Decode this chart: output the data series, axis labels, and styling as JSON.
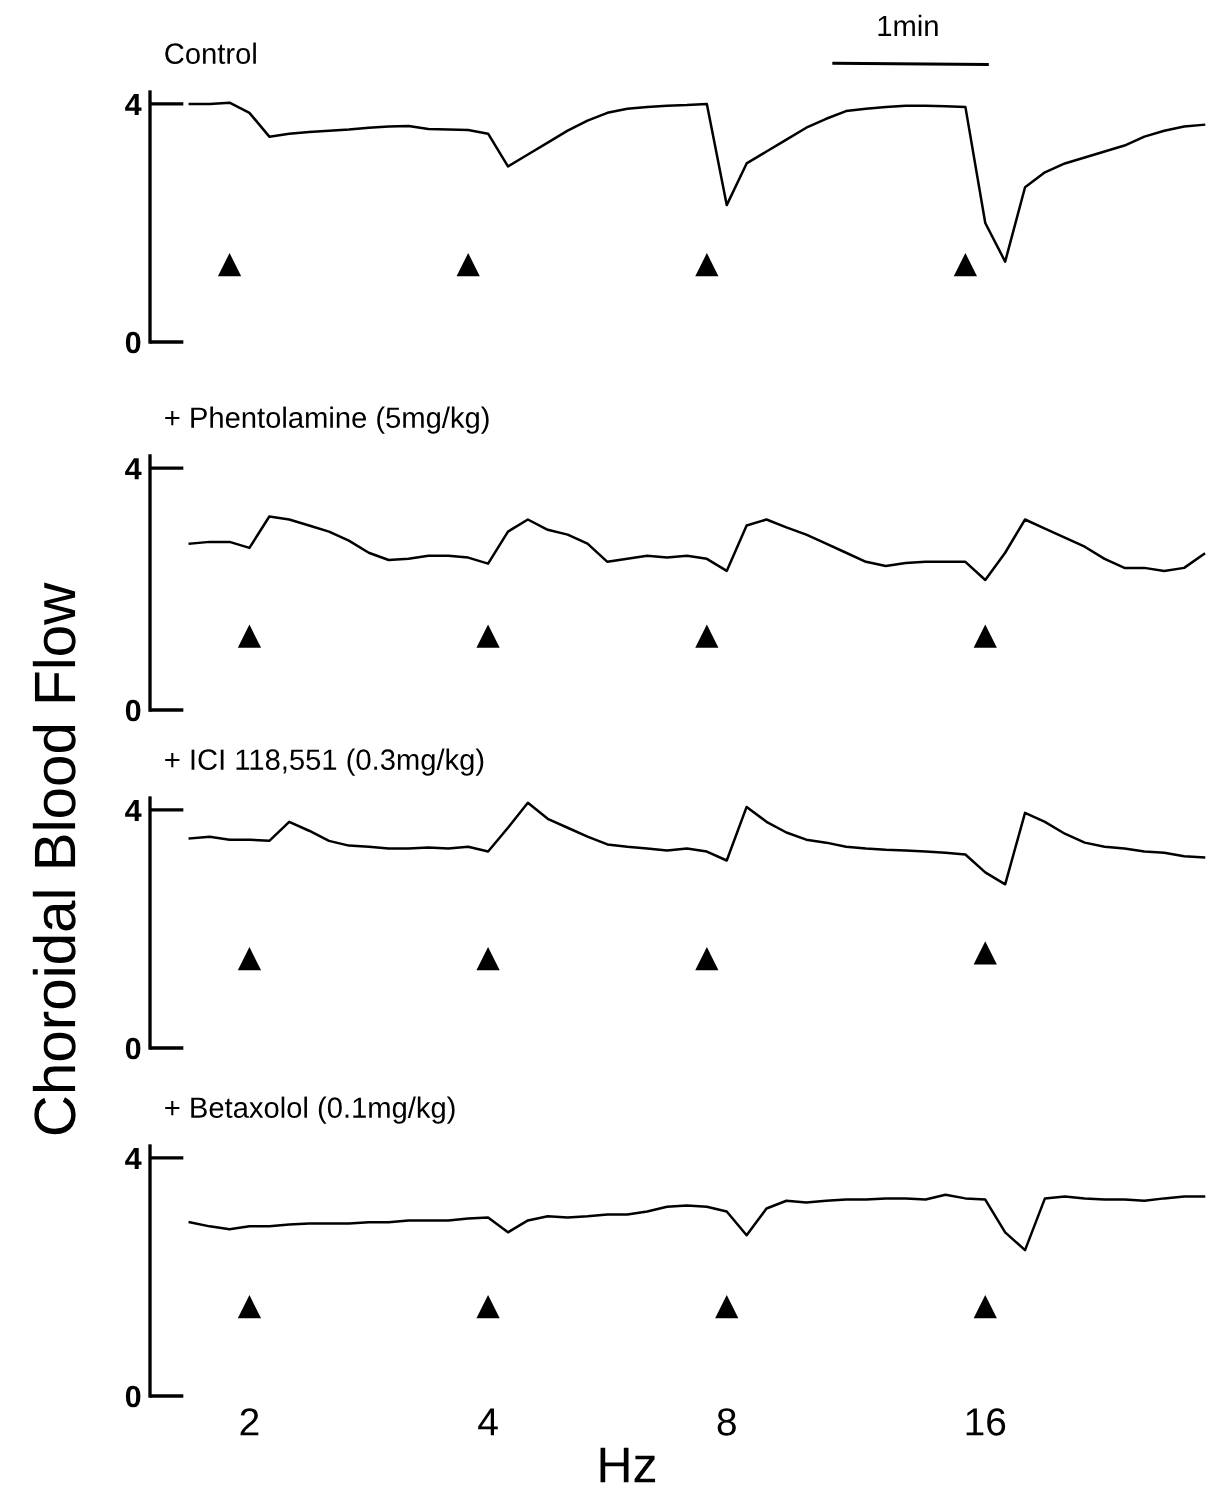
{
  "chart_data": [
    {
      "type": "line",
      "title": "Control",
      "ylabel": "Choroidal Blood Flow",
      "annotations": [
        "1min"
      ],
      "tick_labels": "y",
      "ylim": [
        0,
        4.2
      ],
      "yticks": [
        0,
        4
      ],
      "grid": false,
      "categories": [
        null,
        null,
        null,
        null,
        null,
        null,
        null,
        null,
        null,
        null,
        null,
        null,
        null,
        null,
        null,
        null,
        null,
        null,
        null,
        null,
        null,
        null,
        null,
        null,
        null,
        null,
        null,
        null,
        null,
        null,
        null,
        null,
        null,
        null,
        null,
        null,
        null,
        null,
        null,
        null,
        null,
        null,
        null,
        null,
        null,
        null,
        null,
        null,
        null,
        null,
        null,
        null
      ],
      "series": [
        {
          "color": "#000000",
          "marker": "none",
          "values": [
            4.0,
            4.0,
            4.02,
            3.85,
            3.45,
            3.5,
            3.53,
            3.55,
            3.57,
            3.6,
            3.62,
            3.63,
            3.58,
            3.57,
            3.56,
            3.5,
            2.95,
            3.15,
            3.35,
            3.55,
            3.72,
            3.85,
            3.92,
            3.95,
            3.97,
            3.98,
            4.0,
            2.3,
            3.0,
            3.2,
            3.4,
            3.6,
            3.75,
            3.88,
            3.92,
            3.95,
            3.97,
            3.97,
            3.96,
            3.95,
            2.0,
            1.35,
            2.6,
            2.85,
            3.0,
            3.1,
            3.2,
            3.3,
            3.45,
            3.55,
            3.62,
            3.65
          ]
        },
        {
          "type": "scatter",
          "color": "#000000",
          "marker": "triangle",
          "values": [
            null,
            null,
            1.3,
            null,
            null,
            null,
            null,
            null,
            null,
            null,
            null,
            null,
            null,
            null,
            1.3,
            null,
            null,
            null,
            null,
            null,
            null,
            null,
            null,
            null,
            null,
            null,
            1.3,
            null,
            null,
            null,
            null,
            null,
            null,
            null,
            null,
            null,
            null,
            null,
            null,
            1.3,
            null,
            null,
            null,
            null,
            null,
            null,
            null,
            null,
            null,
            null,
            null,
            null
          ]
        }
      ]
    },
    {
      "type": "line",
      "title": "+ Phentolamine (5mg/kg)",
      "tick_labels": "y",
      "ylim": [
        0,
        4.2
      ],
      "yticks": [
        0,
        4
      ],
      "grid": false,
      "categories": [
        null,
        null,
        null,
        null,
        null,
        null,
        null,
        null,
        null,
        null,
        null,
        null,
        null,
        null,
        null,
        null,
        null,
        null,
        null,
        null,
        null,
        null,
        null,
        null,
        null,
        null,
        null,
        null,
        null,
        null,
        null,
        null,
        null,
        null,
        null,
        null,
        null,
        null,
        null,
        null,
        null,
        null,
        null,
        null,
        null,
        null,
        null,
        null,
        null,
        null,
        null,
        null
      ],
      "series": [
        {
          "color": "#000000",
          "marker": "none",
          "values": [
            2.75,
            2.78,
            2.78,
            2.68,
            3.2,
            3.15,
            3.05,
            2.95,
            2.8,
            2.6,
            2.48,
            2.5,
            2.55,
            2.55,
            2.52,
            2.42,
            2.95,
            3.15,
            2.98,
            2.9,
            2.75,
            2.45,
            2.5,
            2.55,
            2.52,
            2.55,
            2.5,
            2.3,
            3.05,
            3.15,
            3.02,
            2.9,
            2.75,
            2.6,
            2.45,
            2.38,
            2.43,
            2.45,
            2.45,
            2.45,
            2.15,
            2.6,
            3.15,
            3.0,
            2.85,
            2.7,
            2.5,
            2.35,
            2.35,
            2.3,
            2.35,
            2.58
          ]
        },
        {
          "type": "scatter",
          "color": "#000000",
          "marker": "triangle",
          "values": [
            null,
            null,
            null,
            1.22,
            null,
            null,
            null,
            null,
            null,
            null,
            null,
            null,
            null,
            null,
            null,
            1.22,
            null,
            null,
            null,
            null,
            null,
            null,
            null,
            null,
            null,
            null,
            1.22,
            null,
            null,
            null,
            null,
            null,
            null,
            null,
            null,
            null,
            null,
            null,
            null,
            null,
            1.22,
            null,
            null,
            null,
            null,
            null,
            null,
            null,
            null,
            null,
            null,
            null
          ]
        }
      ]
    },
    {
      "type": "line",
      "title": "+ ICI 118,551 (0.3mg/kg)",
      "tick_labels": "y",
      "ylim": [
        0,
        4.2
      ],
      "yticks": [
        0,
        4
      ],
      "grid": false,
      "categories": [
        null,
        null,
        null,
        null,
        null,
        null,
        null,
        null,
        null,
        null,
        null,
        null,
        null,
        null,
        null,
        null,
        null,
        null,
        null,
        null,
        null,
        null,
        null,
        null,
        null,
        null,
        null,
        null,
        null,
        null,
        null,
        null,
        null,
        null,
        null,
        null,
        null,
        null,
        null,
        null,
        null,
        null,
        null,
        null,
        null,
        null,
        null,
        null,
        null,
        null,
        null,
        null
      ],
      "series": [
        {
          "color": "#000000",
          "marker": "none",
          "values": [
            3.52,
            3.55,
            3.5,
            3.5,
            3.48,
            3.8,
            3.65,
            3.48,
            3.4,
            3.38,
            3.35,
            3.35,
            3.37,
            3.35,
            3.38,
            3.3,
            3.7,
            4.12,
            3.85,
            3.7,
            3.55,
            3.42,
            3.38,
            3.35,
            3.32,
            3.35,
            3.3,
            3.15,
            4.05,
            3.8,
            3.62,
            3.5,
            3.45,
            3.38,
            3.35,
            3.33,
            3.32,
            3.3,
            3.28,
            3.25,
            2.95,
            2.75,
            3.95,
            3.8,
            3.6,
            3.45,
            3.38,
            3.35,
            3.3,
            3.28,
            3.22,
            3.2
          ]
        },
        {
          "type": "scatter",
          "color": "#000000",
          "marker": "triangle",
          "values": [
            null,
            null,
            null,
            1.5,
            null,
            null,
            null,
            null,
            null,
            null,
            null,
            null,
            null,
            null,
            null,
            1.5,
            null,
            null,
            null,
            null,
            null,
            null,
            null,
            null,
            null,
            null,
            1.5,
            null,
            null,
            null,
            null,
            null,
            null,
            null,
            null,
            null,
            null,
            null,
            null,
            null,
            1.6,
            null,
            null,
            null,
            null,
            null,
            null,
            null,
            null,
            null,
            null,
            null
          ]
        }
      ]
    },
    {
      "type": "line",
      "title": "+ Betaxolol (0.1mg/kg)",
      "xlabel": "Hz",
      "ylim": [
        0,
        4.2
      ],
      "yticks": [
        0,
        4
      ],
      "grid": false,
      "categories": [
        null,
        null,
        null,
        "2",
        null,
        null,
        null,
        null,
        null,
        null,
        null,
        null,
        null,
        null,
        null,
        "4",
        null,
        null,
        null,
        null,
        null,
        null,
        null,
        null,
        null,
        null,
        null,
        "8",
        null,
        null,
        null,
        null,
        null,
        null,
        null,
        null,
        null,
        null,
        null,
        null,
        "16",
        null,
        null,
        null,
        null,
        null,
        null,
        null,
        null,
        null,
        null,
        null
      ],
      "series": [
        {
          "color": "#000000",
          "marker": "none",
          "values": [
            2.92,
            2.85,
            2.8,
            2.85,
            2.85,
            2.88,
            2.9,
            2.9,
            2.9,
            2.92,
            2.92,
            2.95,
            2.95,
            2.95,
            2.98,
            3.0,
            2.75,
            2.95,
            3.02,
            3.0,
            3.02,
            3.05,
            3.05,
            3.1,
            3.18,
            3.2,
            3.18,
            3.1,
            2.7,
            3.15,
            3.28,
            3.25,
            3.28,
            3.3,
            3.3,
            3.32,
            3.32,
            3.3,
            3.38,
            3.32,
            3.3,
            2.75,
            2.45,
            3.32,
            3.35,
            3.32,
            3.3,
            3.3,
            3.28,
            3.32,
            3.35,
            3.35
          ]
        },
        {
          "type": "scatter",
          "color": "#000000",
          "marker": "triangle",
          "values": [
            null,
            null,
            null,
            1.5,
            null,
            null,
            null,
            null,
            null,
            null,
            null,
            null,
            null,
            null,
            null,
            1.5,
            null,
            null,
            null,
            null,
            null,
            null,
            null,
            null,
            null,
            null,
            null,
            1.5,
            null,
            null,
            null,
            null,
            null,
            null,
            null,
            null,
            null,
            null,
            null,
            null,
            1.5,
            null,
            null,
            null,
            null,
            null,
            null,
            null,
            null,
            null,
            null,
            null
          ]
        }
      ]
    }
  ]
}
